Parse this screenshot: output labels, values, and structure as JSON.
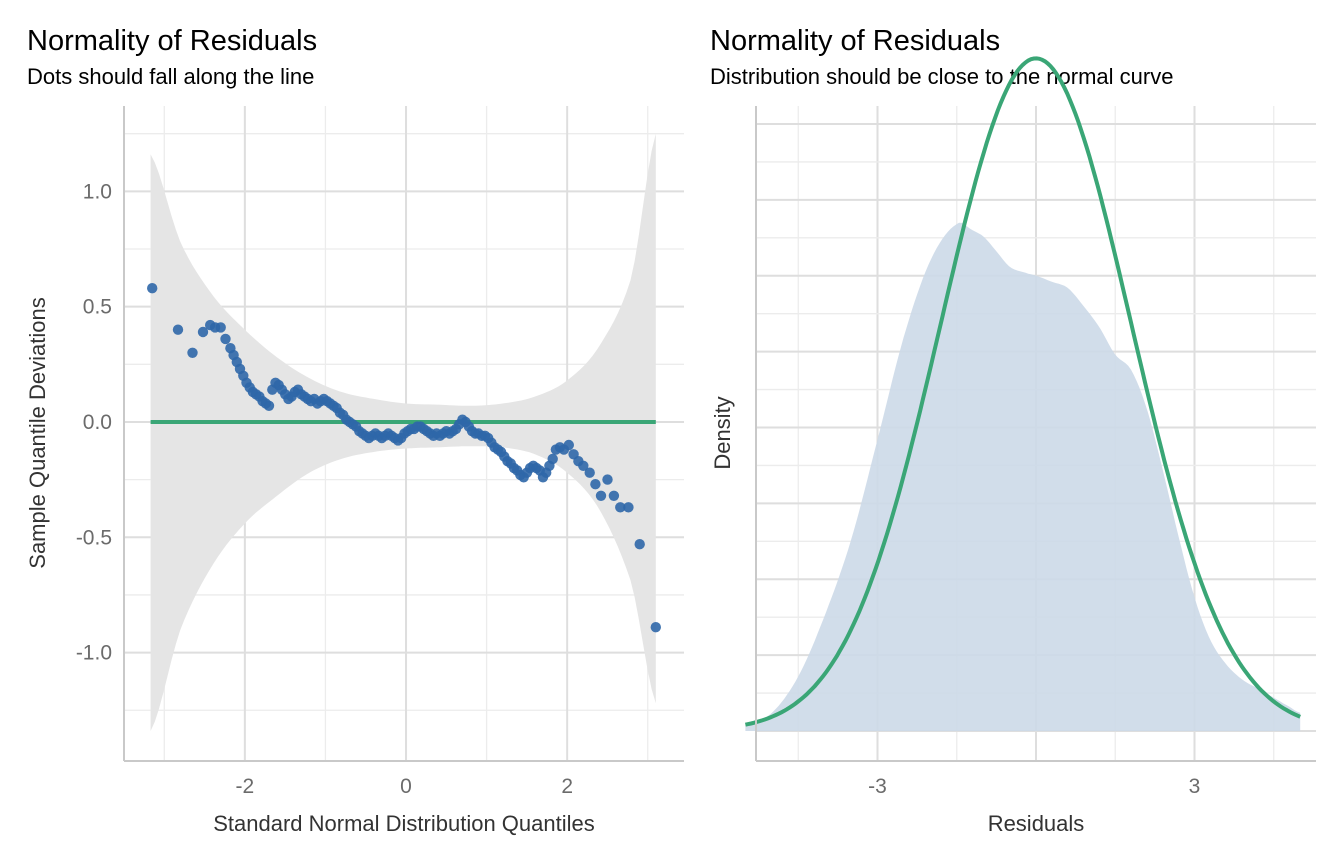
{
  "chart_data": [
    {
      "type": "scatter",
      "title": "Normality of Residuals",
      "subtitle": "Dots should fall along the line",
      "xlabel": "Standard Normal Distribution Quantiles",
      "ylabel": "Sample Quantile Deviations",
      "xlim": [
        -3.5,
        3.45
      ],
      "ylim": [
        -1.47,
        1.37
      ],
      "x_ticks": [
        -2,
        0,
        2
      ],
      "x_tick_labels": [
        "-2",
        "0",
        "2"
      ],
      "y_ticks": [
        1.0,
        0.5,
        0.0,
        -0.5,
        -1.0
      ],
      "y_tick_labels": [
        "1.0",
        "0.5",
        "0.0",
        "-0.5",
        "-1.0"
      ],
      "grid": true,
      "colors": {
        "points": "#2f67a8",
        "reference_line": "#3aa676",
        "band": "#e5e5e5"
      },
      "reference_line": {
        "y": 0.0,
        "x_range": [
          -3.17,
          3.1
        ]
      },
      "confidence_band": {
        "x": [
          -3.17,
          -2.8,
          -2.4,
          -2.0,
          -1.6,
          -1.2,
          -0.8,
          -0.4,
          0.0,
          0.4,
          0.8,
          1.2,
          1.6,
          2.0,
          2.4,
          2.8,
          3.1
        ],
        "upper": [
          1.16,
          0.78,
          0.55,
          0.4,
          0.28,
          0.19,
          0.13,
          0.1,
          0.08,
          0.075,
          0.07,
          0.08,
          0.11,
          0.18,
          0.33,
          0.63,
          1.25
        ],
        "lower": [
          -1.34,
          -0.9,
          -0.62,
          -0.44,
          -0.32,
          -0.22,
          -0.16,
          -0.13,
          -0.115,
          -0.11,
          -0.105,
          -0.11,
          -0.14,
          -0.22,
          -0.38,
          -0.7,
          -1.22
        ]
      },
      "series": [
        {
          "points": [
            [
              -3.15,
              0.58
            ],
            [
              -2.83,
              0.4
            ],
            [
              -2.65,
              0.3
            ],
            [
              -2.52,
              0.39
            ],
            [
              -2.43,
              0.42
            ],
            [
              -2.37,
              0.41
            ],
            [
              -2.3,
              0.41
            ],
            [
              -2.24,
              0.36
            ],
            [
              -2.18,
              0.32
            ],
            [
              -2.14,
              0.29
            ],
            [
              -2.1,
              0.26
            ],
            [
              -2.06,
              0.23
            ],
            [
              -2.02,
              0.2
            ],
            [
              -1.98,
              0.17
            ],
            [
              -1.94,
              0.15
            ],
            [
              -1.9,
              0.13
            ],
            [
              -1.86,
              0.12
            ],
            [
              -1.82,
              0.11
            ],
            [
              -1.78,
              0.09
            ],
            [
              -1.74,
              0.08
            ],
            [
              -1.7,
              0.07
            ],
            [
              -1.66,
              0.14
            ],
            [
              -1.62,
              0.17
            ],
            [
              -1.58,
              0.16
            ],
            [
              -1.54,
              0.14
            ],
            [
              -1.5,
              0.12
            ],
            [
              -1.46,
              0.1
            ],
            [
              -1.42,
              0.11
            ],
            [
              -1.38,
              0.13
            ],
            [
              -1.34,
              0.14
            ],
            [
              -1.3,
              0.12
            ],
            [
              -1.26,
              0.11
            ],
            [
              -1.22,
              0.1
            ],
            [
              -1.18,
              0.09
            ],
            [
              -1.14,
              0.1
            ],
            [
              -1.1,
              0.08
            ],
            [
              -1.06,
              0.09
            ],
            [
              -1.02,
              0.1
            ],
            [
              -0.98,
              0.09
            ],
            [
              -0.94,
              0.08
            ],
            [
              -0.9,
              0.07
            ],
            [
              -0.86,
              0.06
            ],
            [
              -0.82,
              0.04
            ],
            [
              -0.78,
              0.03
            ],
            [
              -0.74,
              0.01
            ],
            [
              -0.7,
              0.0
            ],
            [
              -0.66,
              -0.01
            ],
            [
              -0.62,
              -0.02
            ],
            [
              -0.58,
              -0.04
            ],
            [
              -0.54,
              -0.05
            ],
            [
              -0.5,
              -0.06
            ],
            [
              -0.46,
              -0.07
            ],
            [
              -0.42,
              -0.06
            ],
            [
              -0.38,
              -0.05
            ],
            [
              -0.34,
              -0.06
            ],
            [
              -0.3,
              -0.07
            ],
            [
              -0.26,
              -0.06
            ],
            [
              -0.22,
              -0.05
            ],
            [
              -0.18,
              -0.06
            ],
            [
              -0.14,
              -0.07
            ],
            [
              -0.1,
              -0.08
            ],
            [
              -0.06,
              -0.07
            ],
            [
              -0.02,
              -0.05
            ],
            [
              0.02,
              -0.04
            ],
            [
              0.06,
              -0.03
            ],
            [
              0.1,
              -0.03
            ],
            [
              0.14,
              -0.02
            ],
            [
              0.18,
              -0.02
            ],
            [
              0.22,
              -0.03
            ],
            [
              0.26,
              -0.04
            ],
            [
              0.3,
              -0.05
            ],
            [
              0.34,
              -0.06
            ],
            [
              0.38,
              -0.05
            ],
            [
              0.42,
              -0.06
            ],
            [
              0.46,
              -0.05
            ],
            [
              0.5,
              -0.04
            ],
            [
              0.54,
              -0.05
            ],
            [
              0.58,
              -0.04
            ],
            [
              0.62,
              -0.03
            ],
            [
              0.66,
              -0.01
            ],
            [
              0.7,
              0.01
            ],
            [
              0.74,
              0.0
            ],
            [
              0.78,
              -0.02
            ],
            [
              0.82,
              -0.04
            ],
            [
              0.86,
              -0.05
            ],
            [
              0.9,
              -0.05
            ],
            [
              0.94,
              -0.06
            ],
            [
              0.98,
              -0.06
            ],
            [
              1.02,
              -0.07
            ],
            [
              1.06,
              -0.09
            ],
            [
              1.1,
              -0.11
            ],
            [
              1.14,
              -0.12
            ],
            [
              1.18,
              -0.13
            ],
            [
              1.22,
              -0.15
            ],
            [
              1.26,
              -0.17
            ],
            [
              1.3,
              -0.18
            ],
            [
              1.34,
              -0.2
            ],
            [
              1.38,
              -0.21
            ],
            [
              1.42,
              -0.23
            ],
            [
              1.46,
              -0.24
            ],
            [
              1.5,
              -0.22
            ],
            [
              1.54,
              -0.2
            ],
            [
              1.58,
              -0.19
            ],
            [
              1.62,
              -0.2
            ],
            [
              1.66,
              -0.21
            ],
            [
              1.7,
              -0.24
            ],
            [
              1.74,
              -0.22
            ],
            [
              1.78,
              -0.19
            ],
            [
              1.82,
              -0.16
            ],
            [
              1.86,
              -0.12
            ],
            [
              1.91,
              -0.11
            ],
            [
              1.96,
              -0.12
            ],
            [
              2.02,
              -0.1
            ],
            [
              2.08,
              -0.14
            ],
            [
              2.14,
              -0.17
            ],
            [
              2.2,
              -0.19
            ],
            [
              2.28,
              -0.22
            ],
            [
              2.35,
              -0.27
            ],
            [
              2.42,
              -0.32
            ],
            [
              2.5,
              -0.25
            ],
            [
              2.58,
              -0.32
            ],
            [
              2.66,
              -0.37
            ],
            [
              2.76,
              -0.37
            ],
            [
              2.9,
              -0.53
            ],
            [
              3.1,
              -0.89
            ]
          ]
        }
      ]
    },
    {
      "type": "area",
      "title": "Normality of Residuals",
      "subtitle": "Distribution should be close to the normal curve",
      "xlabel": "Residuals",
      "ylabel": "Density",
      "xlim": [
        -5.3,
        5.3
      ],
      "ylim": [
        0,
        0.2
      ],
      "x_ticks": [
        -3,
        0,
        3
      ],
      "x_tick_labels": [
        "-3",
        "",
        "3"
      ],
      "y_tick_labels_shown": false,
      "grid": true,
      "colors": {
        "density_fill": "#ccd9e8",
        "normal_curve": "#3aa676"
      },
      "series": [
        {
          "x": [
            -5.5,
            -5.0,
            -4.5,
            -4.0,
            -3.5,
            -3.0,
            -2.5,
            -2.0,
            -1.5,
            -1.2,
            -1.0,
            -0.8,
            -0.5,
            -0.2,
            0.0,
            0.3,
            0.6,
            0.9,
            1.2,
            1.5,
            1.8,
            2.1,
            2.4,
            2.7,
            3.0,
            3.3,
            3.6,
            3.9,
            4.2,
            4.5,
            4.8,
            5.0
          ],
          "values": [
            0.002,
            0.006,
            0.018,
            0.038,
            0.063,
            0.096,
            0.13,
            0.155,
            0.167,
            0.165,
            0.163,
            0.159,
            0.153,
            0.151,
            0.15,
            0.148,
            0.146,
            0.14,
            0.133,
            0.124,
            0.119,
            0.106,
            0.086,
            0.064,
            0.044,
            0.03,
            0.022,
            0.017,
            0.014,
            0.011,
            0.008,
            0.006
          ]
        },
        {
          "mean": 0.0,
          "sd": 1.8,
          "x_range": [
            -5.5,
            5.0
          ]
        }
      ]
    }
  ]
}
